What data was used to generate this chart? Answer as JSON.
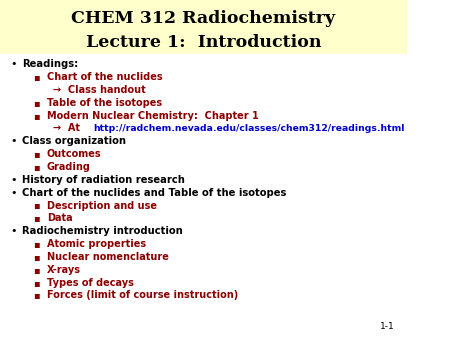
{
  "title_line1": "CHEM 312 Radiochemistry",
  "title_line2": "Lecture 1:  Introduction",
  "title_bg_color": "#ffffcc",
  "title_text_color": "#000000",
  "bg_color": "#ffffff",
  "dark_red": "#8B0000",
  "link_color": "#0000cc",
  "slide_number": "1-1",
  "content": [
    {
      "level": 0,
      "text": "Readings:",
      "color": "#000000",
      "bold": true,
      "link": false
    },
    {
      "level": 1,
      "text": "Chart of the nuclides",
      "color": "#8B0000",
      "bold": true,
      "link": false
    },
    {
      "level": 2,
      "text": "→  Class handout",
      "color": "#8B0000",
      "bold": true,
      "link": false
    },
    {
      "level": 1,
      "text": "Table of the isotopes",
      "color": "#8B0000",
      "bold": true,
      "link": false
    },
    {
      "level": 1,
      "text": "Modern Nuclear Chemistry:  Chapter 1",
      "color": "#8B0000",
      "bold": true,
      "link": false
    },
    {
      "level": 2,
      "text": "→  At ",
      "url": "http://radchem.nevada.edu/classes/chem312/readings.html",
      "color": "#8B0000",
      "bold": true,
      "link": true
    },
    {
      "level": 0,
      "text": "Class organization",
      "color": "#000000",
      "bold": true,
      "link": false
    },
    {
      "level": 1,
      "text": "Outcomes",
      "color": "#8B0000",
      "bold": true,
      "link": false
    },
    {
      "level": 1,
      "text": "Grading",
      "color": "#8B0000",
      "bold": true,
      "link": false
    },
    {
      "level": 0,
      "text": "History of radiation research",
      "color": "#000000",
      "bold": true,
      "link": false
    },
    {
      "level": 0,
      "text": "Chart of the nuclides and Table of the isotopes",
      "color": "#000000",
      "bold": true,
      "link": false
    },
    {
      "level": 1,
      "text": "Description and use",
      "color": "#8B0000",
      "bold": true,
      "link": false
    },
    {
      "level": 1,
      "text": "Data",
      "color": "#8B0000",
      "bold": true,
      "link": false
    },
    {
      "level": 0,
      "text": "Radiochemistry introduction",
      "color": "#000000",
      "bold": true,
      "link": false
    },
    {
      "level": 1,
      "text": "Atomic properties",
      "color": "#8B0000",
      "bold": true,
      "link": false
    },
    {
      "level": 1,
      "text": "Nuclear nomenclature",
      "color": "#8B0000",
      "bold": true,
      "link": false
    },
    {
      "level": 1,
      "text": "X-rays",
      "color": "#8B0000",
      "bold": true,
      "link": false
    },
    {
      "level": 1,
      "text": "Types of decays",
      "color": "#8B0000",
      "bold": true,
      "link": false
    },
    {
      "level": 1,
      "text": "Forces (limit of course instruction)",
      "color": "#8B0000",
      "bold": true,
      "link": false
    }
  ]
}
